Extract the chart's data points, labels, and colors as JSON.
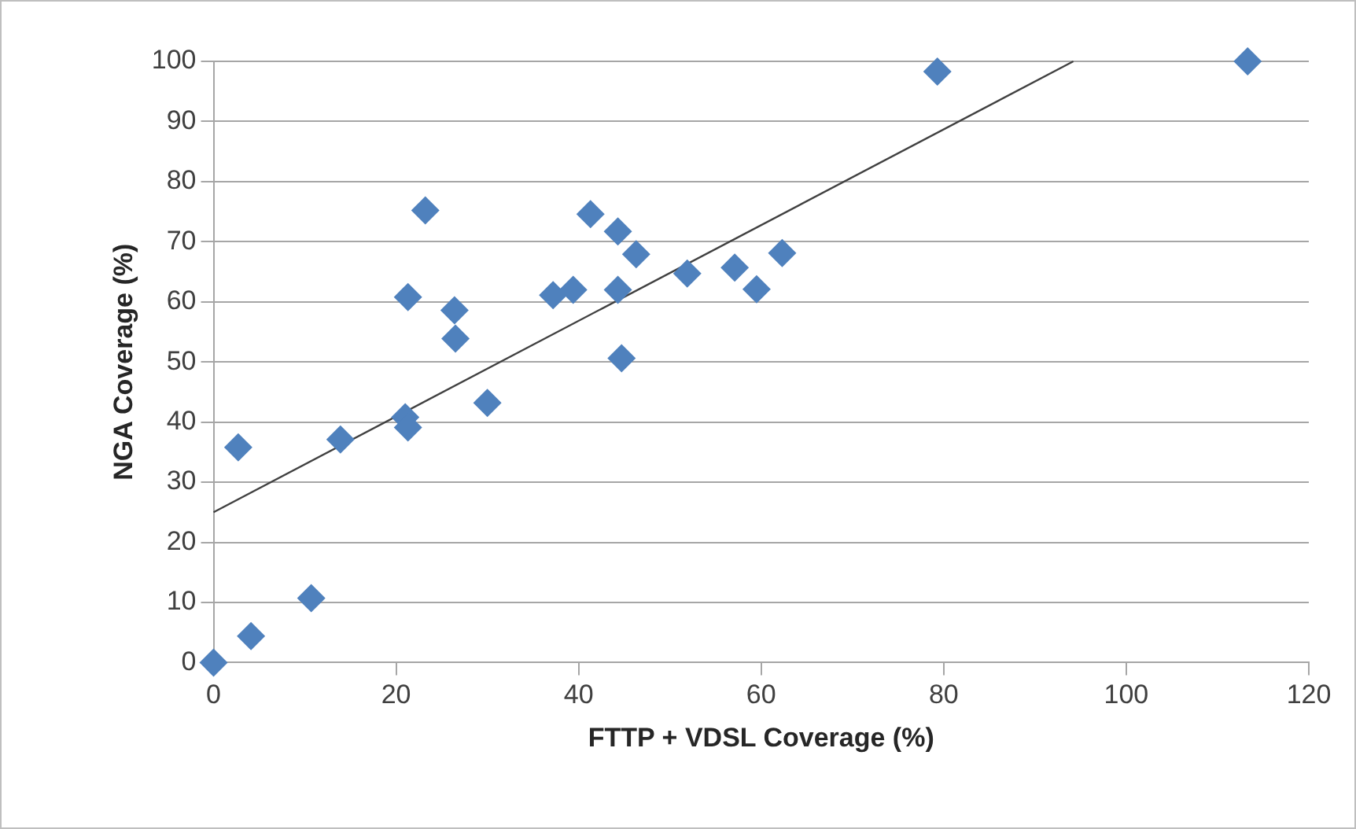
{
  "chart_data": {
    "type": "scatter",
    "xlabel": "FTTP + VDSL Coverage (%)",
    "ylabel": "NGA Coverage (%)",
    "xlim": [
      0,
      120
    ],
    "xticks": [
      0,
      20,
      40,
      60,
      80,
      100,
      120
    ],
    "ylim": [
      0,
      100
    ],
    "yticks": [
      0,
      10,
      20,
      30,
      40,
      50,
      60,
      70,
      80,
      90,
      100
    ],
    "grid": "y",
    "legend": false,
    "marker": "diamond",
    "series": [
      {
        "type": "scatter",
        "color": "#4f81bd",
        "x": [
          0,
          2.7,
          4.1,
          10.7,
          13.9,
          21.0,
          21.3,
          21.3,
          23.2,
          26.4,
          26.5,
          30.0,
          37.2,
          39.4,
          41.3,
          44.3,
          44.3,
          44.7,
          46.3,
          51.9,
          57.1,
          59.5,
          62.3,
          79.3,
          113.3
        ],
        "values": [
          0,
          35.8,
          4.4,
          10.7,
          37.1,
          40.8,
          39.1,
          60.8,
          75.2,
          58.6,
          53.9,
          43.2,
          61.1,
          62.0,
          74.6,
          71.7,
          62.0,
          50.6,
          67.9,
          64.7,
          65.7,
          62.1,
          68.1,
          98.3,
          100
        ]
      },
      {
        "type": "line",
        "color": "#404040",
        "marker": "none",
        "x": [
          0,
          94.2
        ],
        "values": [
          25,
          100
        ]
      }
    ]
  }
}
